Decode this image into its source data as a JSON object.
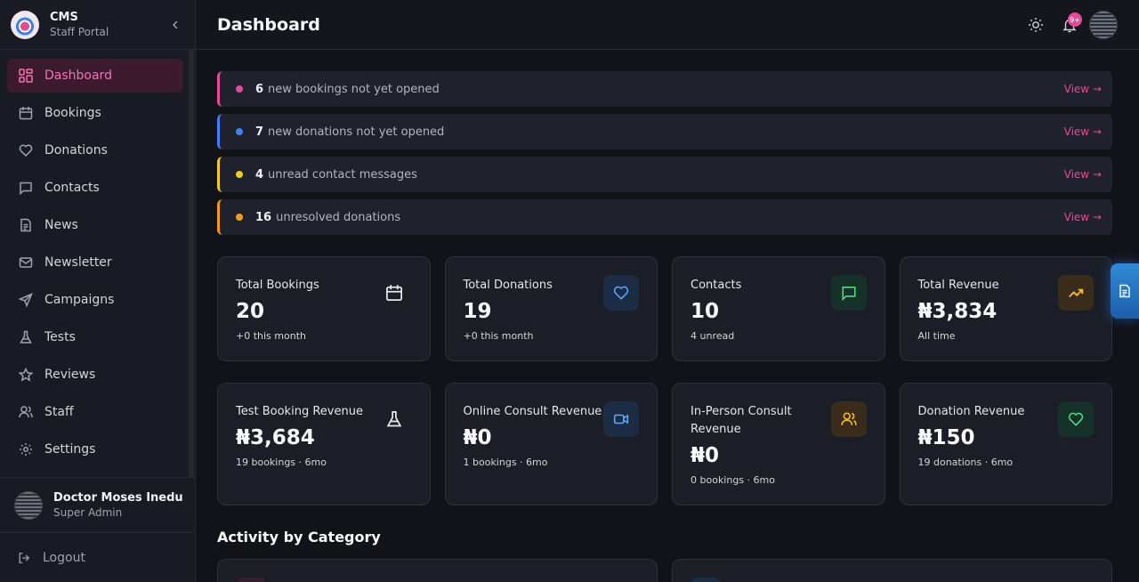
{
  "brand": {
    "title": "CMS",
    "subtitle": "Staff Portal"
  },
  "header": {
    "title": "Dashboard",
    "notification_count": "9+"
  },
  "sidebar": {
    "items": [
      {
        "label": "Dashboard",
        "icon": "grid-icon"
      },
      {
        "label": "Bookings",
        "icon": "calendar-icon"
      },
      {
        "label": "Donations",
        "icon": "heart-icon"
      },
      {
        "label": "Contacts",
        "icon": "message-icon"
      },
      {
        "label": "News",
        "icon": "document-icon"
      },
      {
        "label": "Newsletter",
        "icon": "mail-icon"
      },
      {
        "label": "Campaigns",
        "icon": "send-icon"
      },
      {
        "label": "Tests",
        "icon": "flask-icon"
      },
      {
        "label": "Reviews",
        "icon": "star-icon"
      },
      {
        "label": "Staff",
        "icon": "users-icon"
      },
      {
        "label": "Settings",
        "icon": "gear-icon"
      }
    ]
  },
  "user": {
    "name": "Doctor Moses Inedu",
    "role": "Super Admin"
  },
  "logout_label": "Logout",
  "alerts": [
    {
      "count": "6",
      "text": "new bookings not yet opened",
      "link": "View →",
      "color": "#ec4899"
    },
    {
      "count": "7",
      "text": "new donations not yet opened",
      "link": "View →",
      "color": "#3b82f6"
    },
    {
      "count": "4",
      "text": "unread contact messages",
      "link": "View →",
      "color": "#facc15"
    },
    {
      "count": "16",
      "text": "unresolved donations",
      "link": "View →",
      "color": "#f59e0b"
    }
  ],
  "stats_row1": [
    {
      "label": "Total Bookings",
      "value": "20",
      "sub": "+0 this month",
      "icon": "calendar-icon",
      "color": "#e5e7eb"
    },
    {
      "label": "Total Donations",
      "value": "19",
      "sub": "+0 this month",
      "icon": "heart-icon",
      "color": "#60a5fa"
    },
    {
      "label": "Contacts",
      "value": "10",
      "sub": "4 unread",
      "icon": "message-icon",
      "color": "#4ade80"
    },
    {
      "label": "Total Revenue",
      "value": "₦3,834",
      "sub": "All time",
      "icon": "trending-up-icon",
      "color": "#fbbf24"
    }
  ],
  "stats_row2": [
    {
      "label": "Test Booking Revenue",
      "value": "₦3,684",
      "sub": "19 bookings · 6mo",
      "icon": "flask-icon",
      "color": "#e5e7eb"
    },
    {
      "label": "Online Consult Revenue",
      "value": "₦0",
      "sub": "1 bookings · 6mo",
      "icon": "video-icon",
      "color": "#60a5fa"
    },
    {
      "label": "In-Person Consult Revenue",
      "value": "₦0",
      "sub": "0 bookings · 6mo",
      "icon": "users-icon",
      "color": "#fbbf24"
    },
    {
      "label": "Donation Revenue",
      "value": "₦150",
      "sub": "19 donations · 6mo",
      "icon": "heart-icon",
      "color": "#4ade80"
    }
  ],
  "section_title": "Activity by Category"
}
